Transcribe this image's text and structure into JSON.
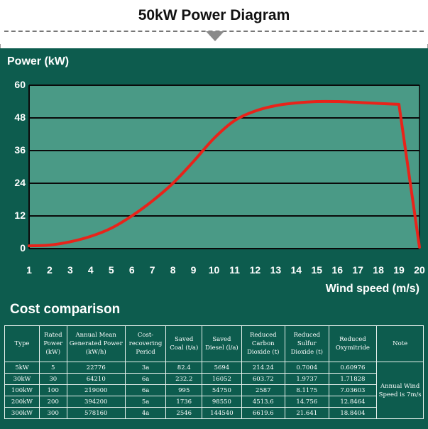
{
  "page_title": "50kW Power Diagram",
  "chart_data": {
    "type": "line",
    "ylabel": "Power (kW)",
    "xlabel": "Wind speed (m/s)",
    "ylim": [
      0,
      60
    ],
    "xlim": [
      1,
      20
    ],
    "yticks": [
      0,
      12,
      24,
      36,
      48,
      60
    ],
    "xticks": [
      1,
      2,
      3,
      4,
      5,
      6,
      7,
      8,
      9,
      10,
      11,
      12,
      13,
      14,
      15,
      16,
      17,
      18,
      19,
      20
    ],
    "grid": true,
    "line_color": "#e8231a",
    "panel_color": "#0d5c4e",
    "plot_color": "#4a9a86",
    "series": [
      {
        "x": [
          1,
          2,
          3,
          4,
          5,
          6,
          7,
          8,
          9,
          10,
          11,
          12,
          13,
          14,
          15,
          16,
          17,
          18,
          19,
          20
        ],
        "values": [
          1,
          1.3,
          2.5,
          4.5,
          7.5,
          12,
          17.5,
          24,
          32,
          40.5,
          47,
          50.5,
          52.5,
          53.5,
          54,
          54,
          53.7,
          53.3,
          53,
          0.5
        ]
      }
    ]
  },
  "cost_title": "Cost comparison",
  "table": {
    "headers": [
      "Type",
      "Rated Power (kW)",
      "Annual Mean Generated Power (kW/h)",
      "Cost-recovering Pericd",
      "Saved Coal (t/a)",
      "Saved Diesel (l/a)",
      "Reduced Carbon Dioxide (t)",
      "Reduced Sulfur Dioxide (t)",
      "Reduced Oxymitride",
      "Note"
    ],
    "rows": [
      [
        "5kW",
        "5",
        "22776",
        "3a",
        "82.4",
        "5694",
        "214.24",
        "0.7004",
        "0.60976"
      ],
      [
        "30kW",
        "30",
        "64210",
        "6a",
        "232.2",
        "16052",
        "603.72",
        "1.9737",
        "1.71828"
      ],
      [
        "100kW",
        "100",
        "219000",
        "6a",
        "995",
        "54750",
        "2587",
        "8.1175",
        "7.03603"
      ],
      [
        "200kW",
        "200",
        "394200",
        "5a",
        "1736",
        "98550",
        "4513.6",
        "14.756",
        "12.8464"
      ],
      [
        "300kW",
        "300",
        "578160",
        "4a",
        "2546",
        "144540",
        "6619.6",
        "21.641",
        "18.8404"
      ]
    ],
    "note": "Annual Wind Speed is 7m/s"
  }
}
